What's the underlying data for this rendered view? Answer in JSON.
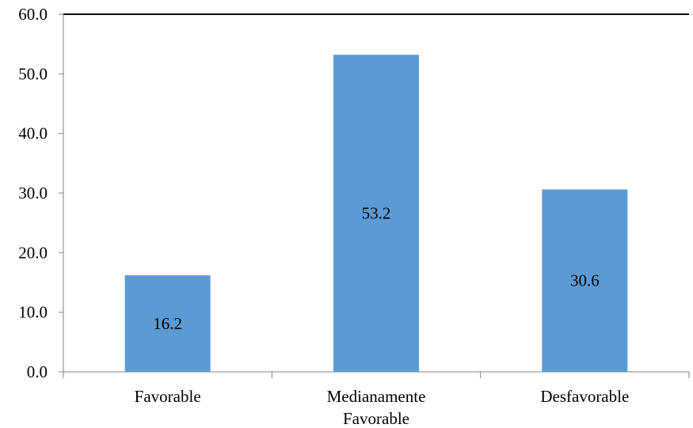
{
  "chart_data": {
    "type": "bar",
    "categories": [
      "Favorable",
      "Medianamente\nFavorable",
      "Desfavorable"
    ],
    "values": [
      16.2,
      53.2,
      30.6
    ],
    "data_labels": [
      "16.2",
      "53.2",
      "30.6"
    ],
    "title": "",
    "xlabel": "",
    "ylabel": "",
    "ylim": [
      0,
      60
    ],
    "yticks": [
      "0.0",
      "10.0",
      "20.0",
      "30.0",
      "40.0",
      "50.0",
      "60.0"
    ],
    "grid": false,
    "legend": "none",
    "colors": {
      "bar": "#5b9bd5",
      "axis": "#000000",
      "tick": "#808080"
    }
  }
}
